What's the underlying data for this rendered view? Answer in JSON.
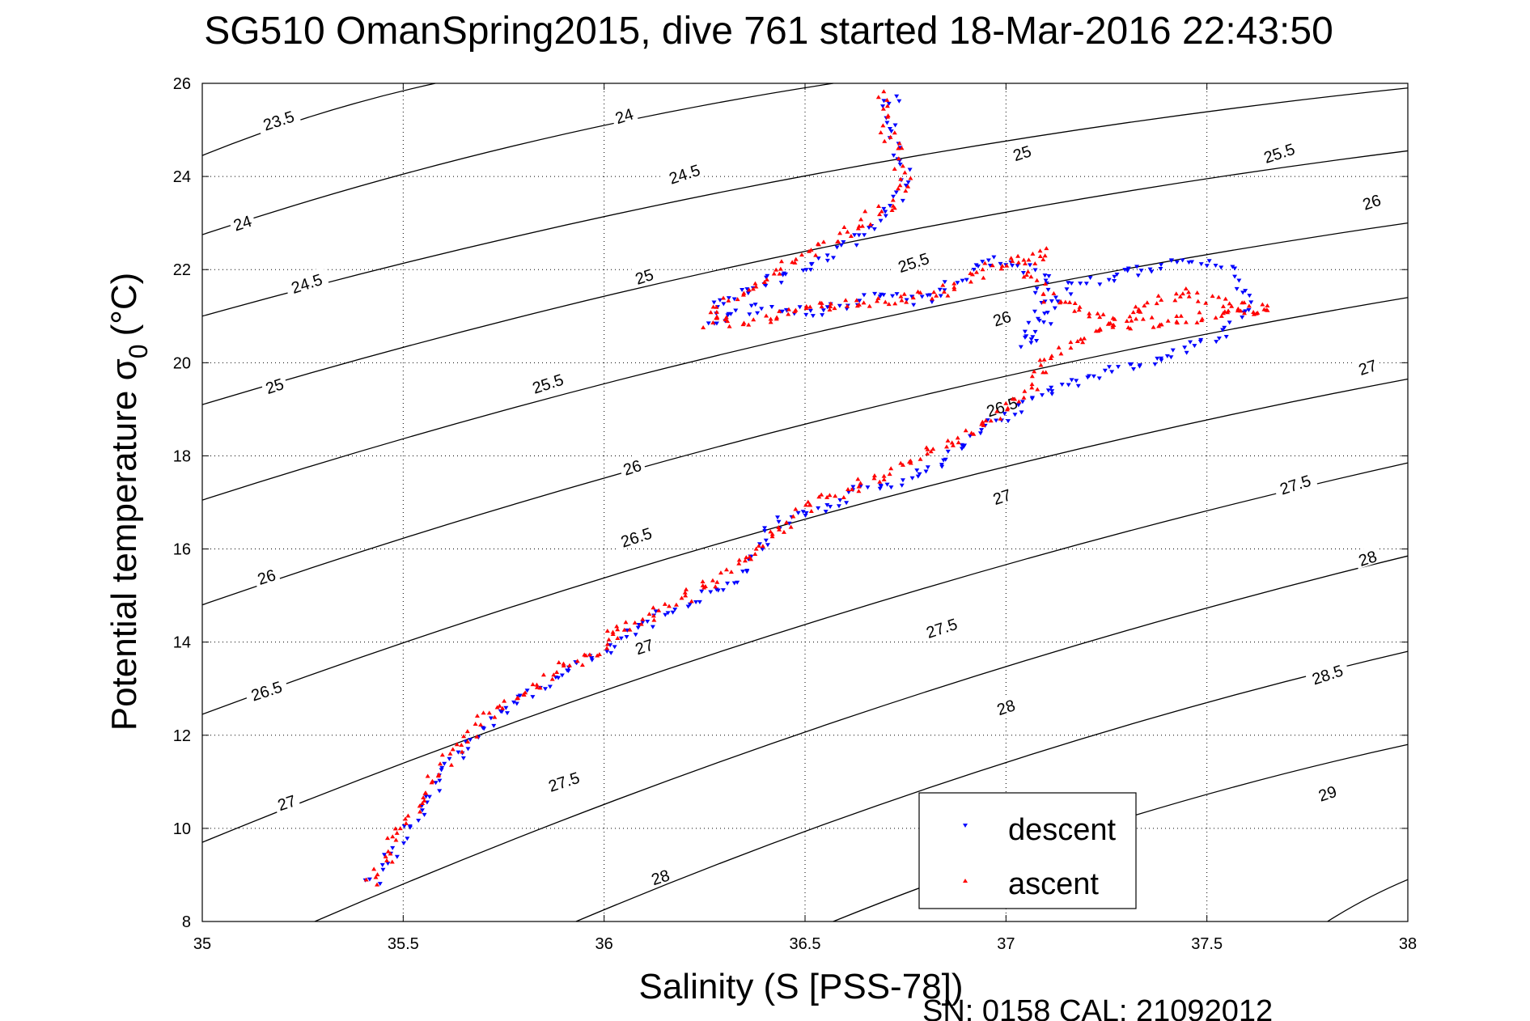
{
  "chart_data": {
    "type": "scatter",
    "title": "SG510 OmanSpring2015, dive 761 started 18-Mar-2016 22:43:50",
    "xlabel": "Salinity (S [PSS-78])",
    "ylabel": "Potential temperature σ",
    "ylabel_subscript": "0",
    "ylabel_unit": "(°C)",
    "xlim": [
      35,
      38
    ],
    "ylim": [
      8,
      26
    ],
    "xticks": [
      "35",
      "35.5",
      "36",
      "36.5",
      "37",
      "37.5",
      "38"
    ],
    "yticks": [
      "8",
      "10",
      "12",
      "14",
      "16",
      "18",
      "20",
      "22",
      "24",
      "26"
    ],
    "grid": true,
    "legend": {
      "position": "bottom-right",
      "entries": [
        {
          "name": "descent",
          "color": "#0000ff",
          "marker": "triangle-down"
        },
        {
          "name": "ascent",
          "color": "#ff0000",
          "marker": "triangle-up"
        }
      ]
    },
    "footer": "SN: 0158  CAL: 21092012",
    "contour_lines": [
      {
        "x0": 35.0,
        "y0": 24.45,
        "x1": 35.58,
        "y1": 26.0
      },
      {
        "x0": 35.0,
        "y0": 22.75,
        "x1": 36.57,
        "y1": 26.0
      },
      {
        "x0": 35.0,
        "y0": 21.0,
        "x1": 38.0,
        "y1": 25.9
      },
      {
        "x0": 35.0,
        "y0": 19.1,
        "x1": 38.0,
        "y1": 24.55
      },
      {
        "x0": 35.0,
        "y0": 17.05,
        "x1": 38.0,
        "y1": 23.0
      },
      {
        "x0": 35.0,
        "y0": 14.8,
        "x1": 38.0,
        "y1": 21.4
      },
      {
        "x0": 35.0,
        "y0": 12.45,
        "x1": 38.0,
        "y1": 19.65
      },
      {
        "x0": 35.0,
        "y0": 9.7,
        "x1": 38.0,
        "y1": 17.85
      },
      {
        "x0": 35.28,
        "y0": 8.0,
        "x1": 38.0,
        "y1": 15.85
      },
      {
        "x0": 35.93,
        "y0": 8.0,
        "x1": 38.0,
        "y1": 13.8
      },
      {
        "x0": 36.57,
        "y0": 8.0,
        "x1": 38.0,
        "y1": 11.8
      },
      {
        "x0": 37.8,
        "y0": 8.0,
        "x1": 38.0,
        "y1": 8.9
      }
    ],
    "contour_labels": [
      {
        "text": "23.5",
        "x": 35.19,
        "y": 25.2
      },
      {
        "text": "24",
        "x": 36.05,
        "y": 25.3
      },
      {
        "text": "24",
        "x": 35.1,
        "y": 23.0
      },
      {
        "text": "24.5",
        "x": 36.2,
        "y": 24.05
      },
      {
        "text": "25",
        "x": 37.04,
        "y": 24.5
      },
      {
        "text": "25.5",
        "x": 37.68,
        "y": 24.5
      },
      {
        "text": "24.5",
        "x": 35.26,
        "y": 21.7
      },
      {
        "text": "25",
        "x": 36.1,
        "y": 21.85
      },
      {
        "text": "25.5",
        "x": 36.77,
        "y": 22.15
      },
      {
        "text": "26",
        "x": 37.91,
        "y": 23.45
      },
      {
        "text": "25",
        "x": 35.18,
        "y": 19.5
      },
      {
        "text": "25.5",
        "x": 35.86,
        "y": 19.55
      },
      {
        "text": "26",
        "x": 36.99,
        "y": 20.95
      },
      {
        "text": "27",
        "x": 37.9,
        "y": 19.9
      },
      {
        "text": "26",
        "x": 36.07,
        "y": 17.75
      },
      {
        "text": "26.5",
        "x": 36.99,
        "y": 19.05
      },
      {
        "text": "27.5",
        "x": 37.72,
        "y": 17.38
      },
      {
        "text": "26",
        "x": 35.16,
        "y": 15.4
      },
      {
        "text": "26.5",
        "x": 36.08,
        "y": 16.25
      },
      {
        "text": "27",
        "x": 36.99,
        "y": 17.12
      },
      {
        "text": "28",
        "x": 37.9,
        "y": 15.8
      },
      {
        "text": "27",
        "x": 36.1,
        "y": 13.9
      },
      {
        "text": "27.5",
        "x": 36.84,
        "y": 14.3
      },
      {
        "text": "26.5",
        "x": 35.16,
        "y": 12.95
      },
      {
        "text": "28",
        "x": 37.0,
        "y": 12.6
      },
      {
        "text": "28.5",
        "x": 37.8,
        "y": 13.3
      },
      {
        "text": "27",
        "x": 35.21,
        "y": 10.55
      },
      {
        "text": "27.5",
        "x": 35.9,
        "y": 11.0
      },
      {
        "text": "29",
        "x": 37.8,
        "y": 10.75
      },
      {
        "text": "28",
        "x": 36.14,
        "y": 8.95
      }
    ],
    "series": [
      {
        "name": "descent",
        "color": "#0000ff",
        "marker": "triangle-down",
        "path": [
          [
            35.42,
            8.82
          ],
          [
            35.5,
            9.9
          ],
          [
            35.6,
            11.2
          ],
          [
            35.7,
            12.2
          ],
          [
            35.8,
            12.85
          ],
          [
            35.9,
            13.35
          ],
          [
            36.0,
            13.8
          ],
          [
            36.03,
            14.05
          ],
          [
            36.1,
            14.4
          ],
          [
            36.2,
            14.8
          ],
          [
            36.3,
            15.2
          ],
          [
            36.35,
            15.6
          ],
          [
            36.42,
            16.5
          ],
          [
            36.55,
            16.9
          ],
          [
            36.65,
            17.3
          ],
          [
            36.75,
            17.5
          ],
          [
            36.85,
            17.9
          ],
          [
            36.95,
            18.6
          ],
          [
            37.0,
            18.9
          ],
          [
            37.1,
            19.4
          ],
          [
            37.25,
            19.8
          ],
          [
            37.4,
            20.1
          ],
          [
            37.52,
            20.55
          ],
          [
            37.6,
            21.2
          ],
          [
            37.55,
            22.1
          ],
          [
            37.45,
            22.2
          ],
          [
            37.3,
            21.9
          ],
          [
            37.15,
            21.6
          ],
          [
            37.05,
            20.3
          ],
          [
            37.1,
            21.9
          ],
          [
            36.95,
            22.2
          ],
          [
            36.8,
            21.3
          ],
          [
            36.7,
            21.5
          ],
          [
            36.55,
            21.1
          ],
          [
            36.4,
            21.2
          ],
          [
            36.3,
            21.0
          ],
          [
            36.26,
            20.9
          ],
          [
            36.28,
            21.2
          ],
          [
            36.35,
            21.6
          ],
          [
            36.5,
            22.0
          ],
          [
            36.6,
            22.5
          ],
          [
            36.68,
            23.0
          ],
          [
            36.73,
            23.5
          ],
          [
            36.75,
            24.0
          ],
          [
            36.72,
            24.8
          ],
          [
            36.7,
            25.5
          ],
          [
            36.73,
            25.8
          ]
        ],
        "points": 420,
        "jitter": 0.035
      },
      {
        "name": "ascent",
        "color": "#ff0000",
        "marker": "triangle-up",
        "path": [
          [
            35.42,
            8.82
          ],
          [
            35.5,
            10.0
          ],
          [
            35.6,
            11.35
          ],
          [
            35.7,
            12.3
          ],
          [
            35.8,
            12.95
          ],
          [
            35.9,
            13.5
          ],
          [
            36.0,
            13.9
          ],
          [
            36.02,
            14.05
          ],
          [
            36.0,
            14.15
          ],
          [
            36.1,
            14.5
          ],
          [
            36.2,
            14.9
          ],
          [
            36.3,
            15.4
          ],
          [
            36.4,
            16.2
          ],
          [
            36.5,
            16.9
          ],
          [
            36.6,
            17.2
          ],
          [
            36.7,
            17.6
          ],
          [
            36.8,
            18.0
          ],
          [
            36.9,
            18.5
          ],
          [
            37.0,
            19.0
          ],
          [
            37.08,
            19.5
          ],
          [
            37.1,
            20.1
          ],
          [
            37.2,
            20.6
          ],
          [
            37.35,
            21.2
          ],
          [
            37.45,
            21.5
          ],
          [
            37.6,
            21.2
          ],
          [
            37.66,
            21.15
          ],
          [
            37.3,
            20.8
          ],
          [
            37.1,
            21.4
          ],
          [
            37.05,
            22.0
          ],
          [
            37.1,
            22.35
          ],
          [
            36.95,
            22.0
          ],
          [
            36.85,
            21.5
          ],
          [
            36.7,
            21.3
          ],
          [
            36.5,
            21.2
          ],
          [
            36.38,
            20.9
          ],
          [
            36.26,
            20.85
          ],
          [
            36.3,
            21.3
          ],
          [
            36.4,
            21.8
          ],
          [
            36.5,
            22.3
          ],
          [
            36.6,
            22.8
          ],
          [
            36.7,
            23.3
          ],
          [
            36.75,
            23.8
          ],
          [
            36.73,
            24.5
          ],
          [
            36.7,
            25.1
          ],
          [
            36.69,
            25.75
          ]
        ],
        "points": 480,
        "jitter": 0.04
      }
    ]
  }
}
